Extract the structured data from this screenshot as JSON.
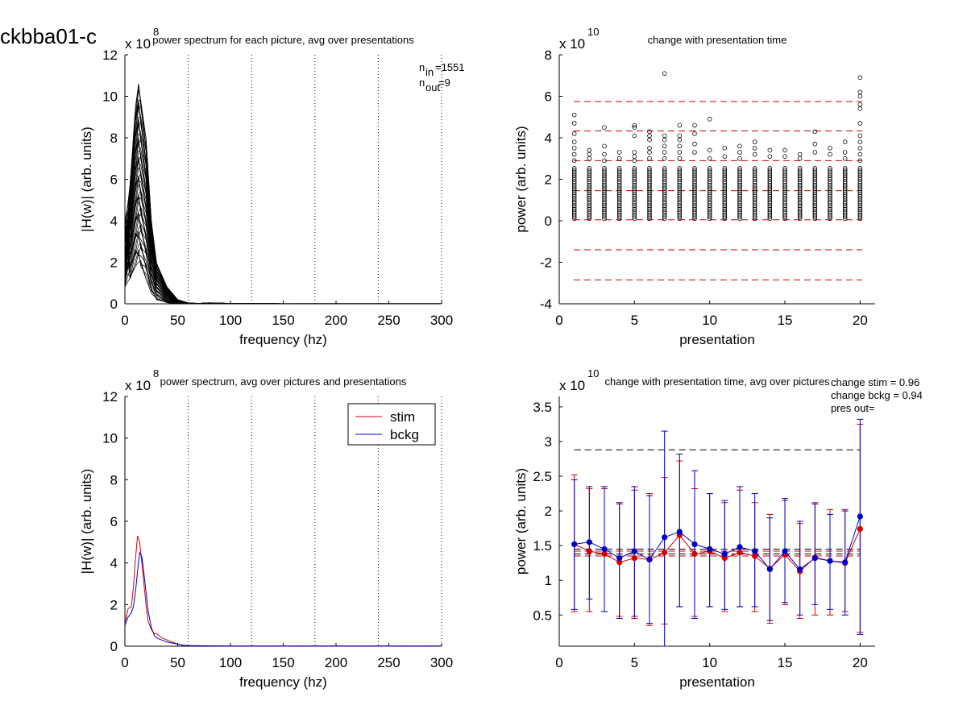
{
  "figure_title": "ckbba01-c",
  "colors": {
    "stim": "#d40000",
    "bckg": "#0000cc",
    "black": "#000000",
    "ref_red": "#cc0000"
  },
  "chart_data": [
    {
      "id": "p1",
      "type": "line",
      "title": "power spectrum for each picture, avg over presentations",
      "xlabel": "frequency (hz)",
      "ylabel": "|H(w)| (arb. units)",
      "exponent_base": "x 10",
      "exponent_power": "8",
      "xlim": [
        0,
        300
      ],
      "ylim": [
        0,
        12
      ],
      "xticks": [
        "0",
        "50",
        "100",
        "150",
        "200",
        "250",
        "300"
      ],
      "yticks": [
        "0",
        "2",
        "4",
        "6",
        "8",
        "10",
        "12"
      ],
      "vlines_dotted": [
        60,
        120,
        180,
        240,
        300
      ],
      "annotation": {
        "n_in_sym": "n",
        "n_in_sub": "in",
        "n_in_val": "=1551",
        "n_out_sym": "n",
        "n_out_sub": "out",
        "n_out_val": "=9"
      },
      "series_envelope": {
        "x": [
          0,
          5,
          10,
          13,
          15,
          20,
          25,
          30,
          40,
          50,
          60,
          70,
          80,
          100,
          150,
          300
        ],
        "peak_max": [
          4.0,
          6.0,
          9.5,
          10.6,
          10.0,
          8.0,
          4.0,
          2.0,
          0.8,
          0.2,
          0.04,
          0.02,
          0.05,
          0.02,
          0.01,
          0.01
        ],
        "peak_min": [
          0.8,
          1.2,
          1.8,
          2.0,
          1.8,
          1.2,
          0.5,
          0.2,
          0.05,
          0.0,
          0,
          0,
          0,
          0,
          0,
          0
        ]
      }
    },
    {
      "id": "p2",
      "type": "scatter",
      "title": "change with presentation time",
      "xlabel": "presentation",
      "ylabel": "power (arb. units)",
      "exponent_base": "x 10",
      "exponent_power": "10",
      "xlim": [
        0,
        21
      ],
      "ylim": [
        -4,
        8
      ],
      "xticks": [
        "0",
        "5",
        "10",
        "15",
        "20"
      ],
      "yticks": [
        "-4",
        "-2",
        "0",
        "2",
        "4",
        "6",
        "8"
      ],
      "hlines_dashed_red": [
        5.75,
        4.33,
        2.9,
        1.45,
        0.05,
        -1.4,
        -2.85
      ],
      "dense_band": {
        "from": 0.1,
        "to": 2.6
      },
      "outliers": [
        [
          1,
          5.1
        ],
        [
          1,
          4.7
        ],
        [
          1,
          4.2
        ],
        [
          1,
          3.8
        ],
        [
          1,
          3.5
        ],
        [
          1,
          3.2
        ],
        [
          1,
          2.9
        ],
        [
          2,
          3.4
        ],
        [
          2,
          3.2
        ],
        [
          2,
          3.0
        ],
        [
          3,
          4.5
        ],
        [
          3,
          3.6
        ],
        [
          3,
          3.2
        ],
        [
          3,
          2.9
        ],
        [
          4,
          3.3
        ],
        [
          4,
          3.0
        ],
        [
          5,
          4.6
        ],
        [
          5,
          4.5
        ],
        [
          5,
          4.1
        ],
        [
          5,
          3.3
        ],
        [
          5,
          3.1
        ],
        [
          5,
          2.9
        ],
        [
          6,
          4.3
        ],
        [
          6,
          4.1
        ],
        [
          6,
          3.9
        ],
        [
          6,
          3.5
        ],
        [
          6,
          3.3
        ],
        [
          6,
          3.0
        ],
        [
          7,
          7.1
        ],
        [
          7,
          4.1
        ],
        [
          7,
          3.9
        ],
        [
          7,
          3.6
        ],
        [
          7,
          3.3
        ],
        [
          7,
          3.0
        ],
        [
          8,
          4.6
        ],
        [
          8,
          4.1
        ],
        [
          8,
          3.9
        ],
        [
          8,
          3.6
        ],
        [
          8,
          3.3
        ],
        [
          8,
          3.0
        ],
        [
          9,
          4.6
        ],
        [
          9,
          4.2
        ],
        [
          9,
          3.7
        ],
        [
          9,
          3.3
        ],
        [
          10,
          4.9
        ],
        [
          10,
          3.4
        ],
        [
          10,
          3.0
        ],
        [
          11,
          3.5
        ],
        [
          11,
          3.1
        ],
        [
          12,
          3.6
        ],
        [
          12,
          3.3
        ],
        [
          12,
          3.0
        ],
        [
          13,
          3.8
        ],
        [
          13,
          3.5
        ],
        [
          13,
          3.2
        ],
        [
          14,
          3.4
        ],
        [
          14,
          3.1
        ],
        [
          15,
          3.4
        ],
        [
          15,
          3.1
        ],
        [
          16,
          3.2
        ],
        [
          16,
          3.0
        ],
        [
          17,
          4.3
        ],
        [
          17,
          3.7
        ],
        [
          17,
          3.3
        ],
        [
          18,
          3.5
        ],
        [
          18,
          3.2
        ],
        [
          19,
          3.8
        ],
        [
          19,
          3.3
        ],
        [
          19,
          3.0
        ],
        [
          20,
          6.9
        ],
        [
          20,
          6.2
        ],
        [
          20,
          6.0
        ],
        [
          20,
          5.6
        ],
        [
          20,
          5.4
        ],
        [
          20,
          4.7
        ],
        [
          20,
          4.1
        ],
        [
          20,
          3.8
        ],
        [
          20,
          3.5
        ],
        [
          20,
          3.2
        ],
        [
          20,
          2.9
        ]
      ]
    },
    {
      "id": "p3",
      "type": "line",
      "title": "power spectrum, avg over pictures and presentations",
      "xlabel": "frequency (hz)",
      "ylabel": "|H(w)| (arb. units)",
      "exponent_base": "x 10",
      "exponent_power": "8",
      "xlim": [
        0,
        300
      ],
      "ylim": [
        0,
        12
      ],
      "xticks": [
        "0",
        "50",
        "100",
        "150",
        "200",
        "250",
        "300"
      ],
      "yticks": [
        "0",
        "2",
        "4",
        "6",
        "8",
        "10",
        "12"
      ],
      "vlines_dotted": [
        60,
        120,
        180,
        240,
        300
      ],
      "legend": {
        "placement": "top-right",
        "entries": [
          "stim",
          "bckg"
        ]
      },
      "series": [
        {
          "name": "stim",
          "x": [
            0,
            3,
            6,
            8,
            10,
            12,
            14,
            16,
            18,
            20,
            22,
            25,
            28,
            30,
            35,
            40,
            45,
            50,
            55,
            60,
            80,
            100,
            300
          ],
          "values": [
            1.1,
            1.8,
            1.9,
            2.8,
            4.2,
            5.3,
            5.0,
            4.0,
            3.0,
            2.0,
            1.2,
            0.8,
            0.6,
            0.6,
            0.4,
            0.3,
            0.2,
            0.1,
            0.05,
            0.03,
            0.02,
            0.01,
            0.01
          ]
        },
        {
          "name": "bckg",
          "x": [
            0,
            3,
            6,
            8,
            10,
            12,
            14,
            16,
            18,
            20,
            22,
            25,
            28,
            30,
            35,
            40,
            45,
            50,
            55,
            60,
            80,
            100,
            300
          ],
          "values": [
            1.0,
            1.4,
            1.6,
            1.9,
            2.6,
            3.6,
            4.5,
            4.3,
            3.5,
            2.6,
            1.7,
            0.9,
            0.5,
            0.4,
            0.3,
            0.2,
            0.15,
            0.1,
            0.04,
            0.03,
            0.02,
            0.01,
            0.01
          ]
        }
      ]
    },
    {
      "id": "p4",
      "type": "line",
      "title": "change with presentation time, avg over pictures",
      "xlabel": "presentation",
      "ylabel": "power (arb. units)",
      "exponent_base": "x 10",
      "exponent_power": "10",
      "xlim": [
        0,
        21
      ],
      "ylim": [
        0.05,
        3.65
      ],
      "xticks": [
        "0",
        "5",
        "10",
        "15",
        "20"
      ],
      "yticks": [
        "0.5",
        "1",
        "1.5",
        "2",
        "2.5",
        "3",
        "3.5"
      ],
      "annotation": [
        "change stim = 0.96",
        "change bckg = 0.94",
        "pres out="
      ],
      "hlines_dashed_black": [
        2.88,
        1.45,
        1.38
      ],
      "hlines_dashed_red": [
        1.42,
        1.35
      ],
      "x": [
        1,
        2,
        3,
        4,
        5,
        6,
        7,
        8,
        9,
        10,
        11,
        12,
        13,
        14,
        15,
        16,
        17,
        18,
        19,
        20
      ],
      "series": [
        {
          "name": "stim",
          "values": [
            1.52,
            1.42,
            1.38,
            1.26,
            1.32,
            1.3,
            1.4,
            1.65,
            1.38,
            1.42,
            1.32,
            1.4,
            1.35,
            1.17,
            1.37,
            1.13,
            1.33,
            1.28,
            1.25,
            1.74
          ],
          "err_low": [
            0.55,
            0.55,
            0.55,
            0.48,
            0.45,
            0.35,
            0.37,
            0.62,
            0.48,
            0.62,
            0.55,
            0.62,
            0.55,
            0.38,
            0.65,
            0.45,
            0.5,
            0.5,
            0.55,
            0.25
          ],
          "err_high": [
            2.52,
            2.32,
            2.32,
            2.1,
            2.3,
            2.25,
            2.48,
            2.72,
            2.32,
            2.25,
            2.12,
            2.3,
            2.12,
            1.95,
            2.15,
            1.82,
            2.12,
            2.02,
            2.02,
            3.25
          ]
        },
        {
          "name": "bckg",
          "values": [
            1.52,
            1.55,
            1.45,
            1.32,
            1.42,
            1.3,
            1.62,
            1.7,
            1.52,
            1.45,
            1.38,
            1.48,
            1.42,
            1.16,
            1.42,
            1.16,
            1.32,
            1.28,
            1.26,
            1.92
          ],
          "err_low": [
            0.58,
            0.73,
            0.55,
            0.45,
            0.48,
            0.38,
            0.05,
            0.62,
            0.45,
            0.62,
            0.58,
            0.62,
            0.62,
            0.42,
            0.68,
            0.5,
            0.65,
            0.58,
            0.5,
            0.22
          ],
          "err_high": [
            2.45,
            2.35,
            2.35,
            2.12,
            2.35,
            2.22,
            3.15,
            2.82,
            2.58,
            2.25,
            2.15,
            2.35,
            2.25,
            1.9,
            2.18,
            1.85,
            2.1,
            1.95,
            2.0,
            3.32
          ]
        }
      ]
    }
  ]
}
